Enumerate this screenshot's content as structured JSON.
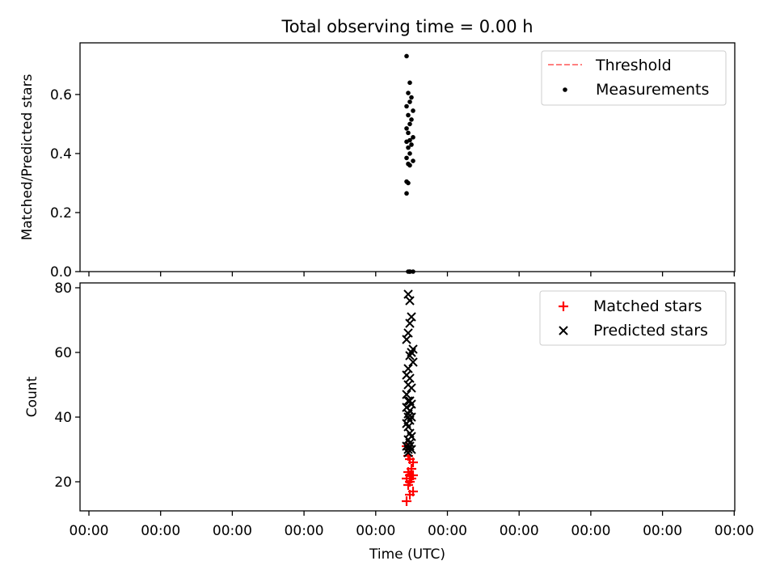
{
  "chart_data": {
    "title": "Total observing time = 0.00 h",
    "x_label": "Time (UTC)",
    "x_tick_labels": [
      "00:00",
      "00:00",
      "00:00",
      "00:00",
      "00:00",
      "00:00",
      "00:00",
      "00:00",
      "00:00",
      "00:00"
    ],
    "panels": [
      {
        "type": "scatter",
        "ylabel": "Matched/Predicted stars",
        "ylim": [
          0,
          0.775
        ],
        "yticks": [
          0.0,
          0.2,
          0.4,
          0.6
        ],
        "ytick_labels": [
          "0.0",
          "0.2",
          "0.4",
          "0.6"
        ],
        "legend_placement": "top-right",
        "series": [
          {
            "name": "Threshold",
            "kind": "dashed-line",
            "color": "#ff8080",
            "values": []
          },
          {
            "name": "Measurements",
            "kind": "dot",
            "color": "#000000",
            "x_index": [
              0.0,
              0.1,
              0.05,
              0.15,
              0.1,
              0.0,
              0.2,
              0.05,
              0.15,
              0.1,
              0.0,
              0.05,
              0.2,
              0.1,
              0.0,
              0.15,
              0.05,
              0.1,
              0.0,
              0.2,
              0.05,
              0.1,
              0.0,
              0.05,
              0.0,
              0.1,
              0.2,
              0.05,
              0.1
            ],
            "y": [
              0.73,
              0.64,
              0.605,
              0.59,
              0.575,
              0.56,
              0.545,
              0.53,
              0.515,
              0.5,
              0.485,
              0.47,
              0.455,
              0.445,
              0.44,
              0.43,
              0.42,
              0.4,
              0.385,
              0.375,
              0.365,
              0.36,
              0.305,
              0.3,
              0.265,
              0.0,
              0.0,
              0.0,
              0.0
            ]
          }
        ]
      },
      {
        "type": "scatter",
        "ylabel": "Count",
        "ylim": [
          11,
          81.5
        ],
        "yticks": [
          20,
          40,
          60,
          80
        ],
        "ytick_labels": [
          "20",
          "40",
          "60",
          "80"
        ],
        "legend_placement": "top-right",
        "series": [
          {
            "name": "Matched stars",
            "marker": "plus",
            "color": "#ff0000",
            "x_index": [
              0.0,
              0.05,
              0.1,
              0.2,
              0.15,
              0.05,
              0.1,
              0.2,
              0.0,
              0.15,
              0.1,
              0.05,
              0.2,
              0.1,
              0.0
            ],
            "y": [
              31,
              28,
              27,
              26,
              24,
              23,
              22,
              22,
              21,
              21,
              20,
              19,
              17,
              16,
              14
            ]
          },
          {
            "name": "Predicted stars",
            "marker": "x",
            "color": "#000000",
            "x_index": [
              0.05,
              0.1,
              0.15,
              0.1,
              0.05,
              0.0,
              0.2,
              0.15,
              0.1,
              0.2,
              0.05,
              0.0,
              0.1,
              0.05,
              0.15,
              0.0,
              0.1,
              0.05,
              0.15,
              0.0,
              0.1,
              0.05,
              0.15,
              0.05,
              0.1,
              0.0,
              0.05,
              0.1,
              0.15,
              0.05,
              0.1,
              0.0,
              0.05,
              0.1,
              0.15,
              0.05
            ],
            "y": [
              78,
              76,
              71,
              69,
              66,
              64,
              61,
              60,
              59,
              57,
              55,
              53,
              52,
              50,
              49,
              47,
              45,
              45,
              44,
              43,
              42,
              41,
              40,
              40,
              39,
              38,
              37,
              35,
              34,
              33,
              32,
              31,
              30,
              31,
              30,
              29
            ]
          }
        ]
      }
    ]
  }
}
